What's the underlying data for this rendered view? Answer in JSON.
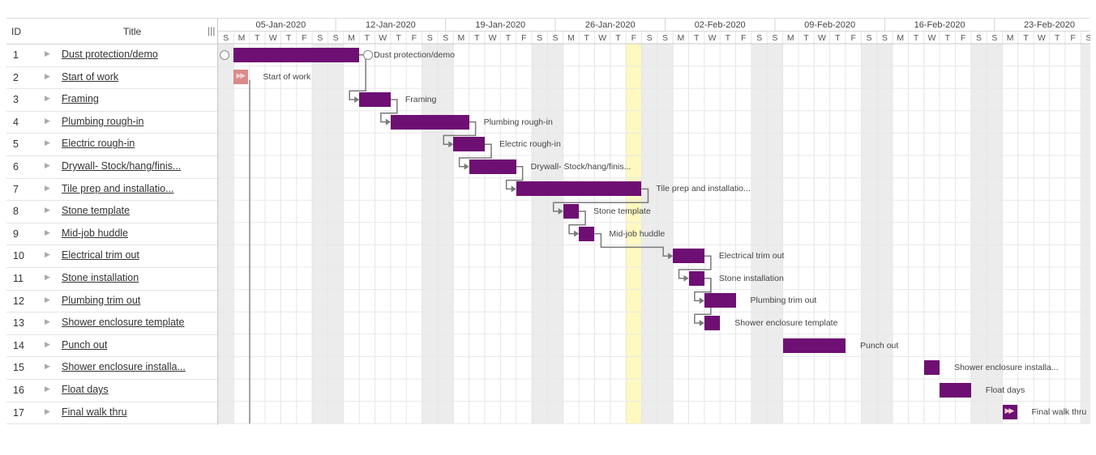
{
  "grid": {
    "header": {
      "id": "ID",
      "title": "Title",
      "splitter": "|||"
    },
    "rows": [
      {
        "id": "1",
        "title": "Dust protection/demo"
      },
      {
        "id": "2",
        "title": "Start of work"
      },
      {
        "id": "3",
        "title": "Framing"
      },
      {
        "id": "4",
        "title": "Plumbing rough-in"
      },
      {
        "id": "5",
        "title": "Electric rough-in"
      },
      {
        "id": "6",
        "title": "Drywall- Stock/hang/finis..."
      },
      {
        "id": "7",
        "title": "Tile prep and installatio..."
      },
      {
        "id": "8",
        "title": "Stone template"
      },
      {
        "id": "9",
        "title": "Mid-job huddle"
      },
      {
        "id": "10",
        "title": "Electrical trim out"
      },
      {
        "id": "11",
        "title": "Stone installation"
      },
      {
        "id": "12",
        "title": "Plumbing trim out"
      },
      {
        "id": "13",
        "title": "Shower enclosure template"
      },
      {
        "id": "14",
        "title": "Punch out"
      },
      {
        "id": "15",
        "title": "Shower enclosure installa..."
      },
      {
        "id": "16",
        "title": "Float days"
      },
      {
        "id": "17",
        "title": "Final walk thru"
      }
    ]
  },
  "timeline": {
    "weeks": [
      "05-Jan-2020",
      "12-Jan-2020",
      "19-Jan-2020",
      "26-Jan-2020",
      "02-Feb-2020",
      "09-Feb-2020",
      "16-Feb-2020",
      "23-Feb-2020"
    ],
    "day_letters": [
      "S",
      "M",
      "T",
      "W",
      "T",
      "F",
      "S"
    ],
    "last_day": "S",
    "today_highlight": "31-Jan-2020"
  },
  "tasks": [
    {
      "row": 1,
      "start": 1,
      "dur": 8,
      "label": "Dust protection/demo",
      "type": "task"
    },
    {
      "row": 2,
      "start": 1,
      "dur": 1,
      "label": "Start of work",
      "type": "milestone"
    },
    {
      "row": 3,
      "start": 9,
      "dur": 2,
      "label": "Framing",
      "type": "task"
    },
    {
      "row": 4,
      "start": 11,
      "dur": 5,
      "label": "Plumbing rough-in",
      "type": "task"
    },
    {
      "row": 5,
      "start": 15,
      "dur": 2,
      "label": "Electric rough-in",
      "type": "task"
    },
    {
      "row": 6,
      "start": 16,
      "dur": 3,
      "label": "Drywall- Stock/hang/finis...",
      "type": "task"
    },
    {
      "row": 7,
      "start": 19,
      "dur": 8,
      "label": "Tile prep and installatio...",
      "type": "task"
    },
    {
      "row": 8,
      "start": 22,
      "dur": 1,
      "label": "Stone template",
      "type": "task"
    },
    {
      "row": 9,
      "start": 23,
      "dur": 1,
      "label": "Mid-job huddle",
      "type": "task"
    },
    {
      "row": 10,
      "start": 29,
      "dur": 2,
      "label": "Electrical trim out",
      "type": "task"
    },
    {
      "row": 11,
      "start": 30,
      "dur": 1,
      "label": "Stone installation",
      "type": "task"
    },
    {
      "row": 12,
      "start": 31,
      "dur": 2,
      "label": "Plumbing trim out",
      "type": "task"
    },
    {
      "row": 13,
      "start": 31,
      "dur": 1,
      "label": "Shower enclosure template",
      "type": "task"
    },
    {
      "row": 14,
      "start": 36,
      "dur": 4,
      "label": "Punch out",
      "type": "task"
    },
    {
      "row": 15,
      "start": 45,
      "dur": 1,
      "label": "Shower enclosure installa...",
      "type": "task"
    },
    {
      "row": 16,
      "start": 46,
      "dur": 2,
      "label": "Float days",
      "type": "task"
    },
    {
      "row": 17,
      "start": 50,
      "dur": 1,
      "label": "Final walk thru",
      "type": "milestone"
    }
  ],
  "links": [
    [
      1,
      3
    ],
    [
      3,
      4
    ],
    [
      4,
      5
    ],
    [
      5,
      6
    ],
    [
      6,
      7
    ],
    [
      7,
      8
    ],
    [
      8,
      9
    ],
    [
      9,
      10
    ],
    [
      10,
      11
    ],
    [
      11,
      12
    ],
    [
      11,
      13
    ]
  ],
  "colors": {
    "bar": "#6e0f73",
    "milestone_start": "#d98a8a",
    "weekend": "#ececec",
    "today": "#fff8bf",
    "gridline": "#e6e6e6",
    "link": "#7a7a7a"
  }
}
